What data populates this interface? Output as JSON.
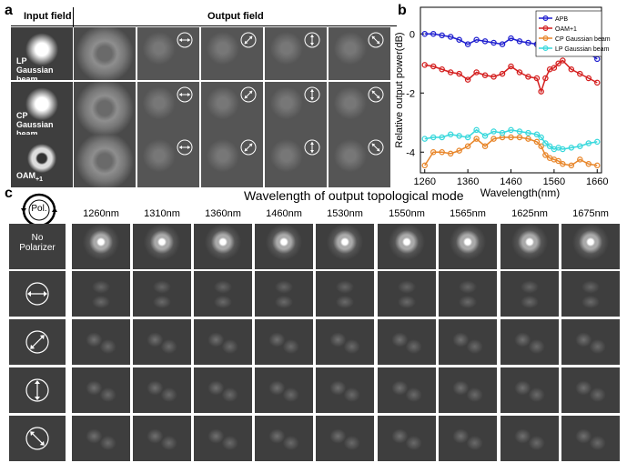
{
  "panels": {
    "a": "a",
    "b": "b",
    "c": "c"
  },
  "panel_a": {
    "col_input": "Input field",
    "col_output": "Output field",
    "rows": [
      {
        "line1": "LP",
        "line2": "Gaussian beam"
      },
      {
        "line1": "CP",
        "line2": "Gaussian beam"
      },
      {
        "line1": "OAM",
        "line2": "+1"
      }
    ]
  },
  "chart_data": {
    "type": "line",
    "title": "",
    "xlabel": "Wavelength(nm)",
    "ylabel": "Relative output power(dB)",
    "xlim": [
      1250,
      1670
    ],
    "ylim": [
      -4.7,
      0.9
    ],
    "xticks": [
      1260,
      1360,
      1460,
      1560,
      1660
    ],
    "yticks": [
      0,
      -2,
      -4
    ],
    "legend_position": "top-right",
    "x": [
      1260,
      1280,
      1300,
      1320,
      1340,
      1360,
      1380,
      1400,
      1420,
      1440,
      1460,
      1480,
      1500,
      1520,
      1530,
      1540,
      1550,
      1560,
      1570,
      1580,
      1600,
      1620,
      1640,
      1660
    ],
    "series": [
      {
        "name": "APB",
        "color": "#1f1fcf",
        "values": [
          0,
          0,
          -0.05,
          -0.1,
          -0.2,
          -0.35,
          -0.2,
          -0.25,
          -0.3,
          -0.35,
          -0.15,
          -0.25,
          -0.3,
          -0.35,
          -0.5,
          -0.3,
          -0.05,
          -0.25,
          -0.5,
          -0.2,
          -0.4,
          -0.6,
          -0.65,
          -0.85
        ]
      },
      {
        "name": "OAM+1",
        "color": "#d41f1f",
        "values": [
          -1.05,
          -1.1,
          -1.2,
          -1.3,
          -1.35,
          -1.55,
          -1.3,
          -1.4,
          -1.45,
          -1.35,
          -1.1,
          -1.3,
          -1.45,
          -1.5,
          -1.95,
          -1.5,
          -1.2,
          -1.15,
          -1.0,
          -0.9,
          -1.2,
          -1.35,
          -1.5,
          -1.65
        ]
      },
      {
        "name": "CP Gaussian beam",
        "color": "#e8862a",
        "values": [
          -4.45,
          -4.0,
          -4.0,
          -4.05,
          -3.95,
          -3.8,
          -3.55,
          -3.8,
          -3.55,
          -3.5,
          -3.5,
          -3.5,
          -3.55,
          -3.65,
          -3.8,
          -4.1,
          -4.2,
          -4.25,
          -4.3,
          -4.4,
          -4.45,
          -4.25,
          -4.4,
          -4.45
        ]
      },
      {
        "name": "LP Gaussian beam",
        "color": "#38d8dc",
        "values": [
          -3.55,
          -3.5,
          -3.5,
          -3.4,
          -3.45,
          -3.5,
          -3.25,
          -3.45,
          -3.3,
          -3.35,
          -3.25,
          -3.3,
          -3.35,
          -3.4,
          -3.5,
          -3.7,
          -3.8,
          -3.9,
          -3.85,
          -3.9,
          -3.85,
          -3.8,
          -3.7,
          -3.65
        ]
      }
    ]
  },
  "panel_c": {
    "pol_icon_text": "Pol.",
    "title": "Wavelength of output topological mode",
    "wavelengths": [
      "1260nm",
      "1310nm",
      "1360nm",
      "1460nm",
      "1530nm",
      "1550nm",
      "1565nm",
      "1625nm",
      "1675nm"
    ],
    "row0_label_line1": "No",
    "row0_label_line2": "Polarizer"
  }
}
